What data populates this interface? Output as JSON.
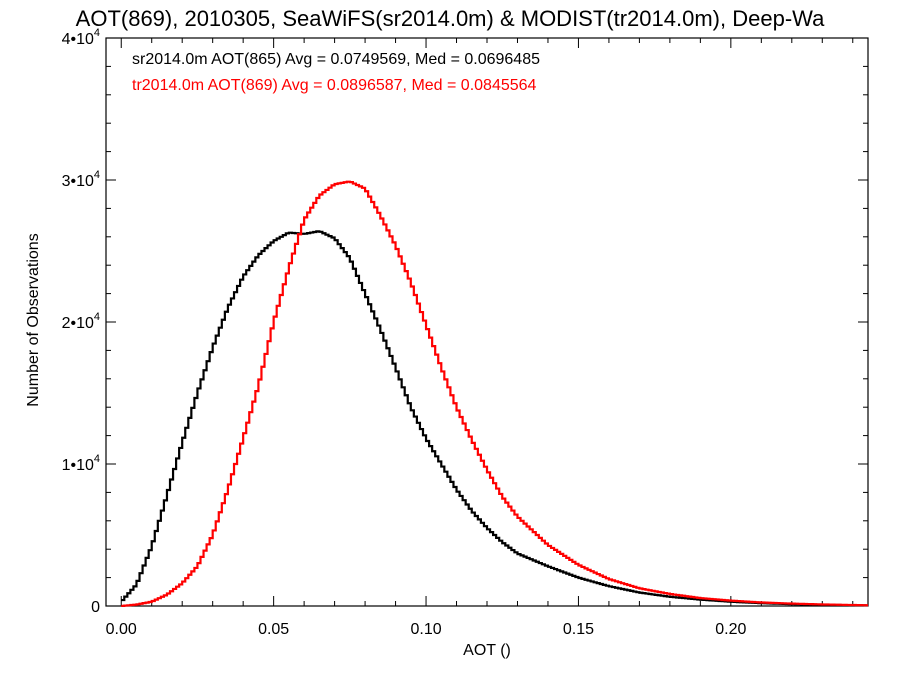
{
  "chart_data": {
    "type": "line",
    "title": "AOT(869), 2010305, SeaWiFS(sr2014.0m) & MODIST(tr2014.0m), Deep-Wa",
    "xlabel": "AOT ()",
    "ylabel": "Number of Observations",
    "xlim": [
      -0.005,
      0.245
    ],
    "ylim": [
      0,
      40000
    ],
    "x_ticks": [
      0.0,
      0.05,
      0.1,
      0.15,
      0.2
    ],
    "x_tick_labels": [
      "0.00",
      "0.05",
      "0.10",
      "0.15",
      "0.20"
    ],
    "y_ticks": [
      0,
      10000,
      20000,
      30000,
      40000
    ],
    "y_tick_labels": [
      {
        "mant": "0",
        "exp": ""
      },
      {
        "mant": "1•10",
        "exp": "4"
      },
      {
        "mant": "2•10",
        "exp": "4"
      },
      {
        "mant": "3•10",
        "exp": "4"
      },
      {
        "mant": "4•10",
        "exp": "4"
      }
    ],
    "legend": [
      {
        "text": "sr2014.0m AOT(865) Avg = 0.0749569, Med = 0.0696485",
        "color": "#000000"
      },
      {
        "text": "tr2014.0m AOT(869) Avg = 0.0896587, Med = 0.0845564",
        "color": "#ff0000"
      }
    ],
    "series": [
      {
        "color": "#000000",
        "x": [
          0.0,
          0.005,
          0.01,
          0.015,
          0.02,
          0.025,
          0.03,
          0.035,
          0.04,
          0.045,
          0.05,
          0.055,
          0.06,
          0.065,
          0.07,
          0.075,
          0.08,
          0.085,
          0.09,
          0.095,
          0.1,
          0.105,
          0.11,
          0.115,
          0.12,
          0.125,
          0.13,
          0.14,
          0.15,
          0.16,
          0.17,
          0.18,
          0.19,
          0.2,
          0.21,
          0.22,
          0.23,
          0.24,
          0.245
        ],
        "y": [
          300,
          1500,
          4200,
          7800,
          11500,
          15000,
          18200,
          21000,
          23200,
          24700,
          25700,
          26300,
          26200,
          26400,
          25900,
          24500,
          22000,
          19500,
          16800,
          14000,
          11800,
          10000,
          8200,
          6700,
          5500,
          4500,
          3700,
          2800,
          2000,
          1400,
          950,
          650,
          450,
          300,
          200,
          130,
          90,
          50,
          40
        ]
      },
      {
        "color": "#ff0000",
        "x": [
          0.0,
          0.005,
          0.01,
          0.015,
          0.02,
          0.025,
          0.03,
          0.035,
          0.04,
          0.045,
          0.05,
          0.055,
          0.06,
          0.065,
          0.07,
          0.075,
          0.08,
          0.085,
          0.09,
          0.095,
          0.1,
          0.105,
          0.11,
          0.115,
          0.12,
          0.125,
          0.13,
          0.14,
          0.15,
          0.16,
          0.17,
          0.18,
          0.19,
          0.2,
          0.21,
          0.22,
          0.23,
          0.24,
          0.245
        ],
        "y": [
          0,
          100,
          300,
          800,
          1600,
          2800,
          5000,
          8200,
          11800,
          15500,
          20000,
          23800,
          27200,
          28900,
          29700,
          29900,
          29400,
          27500,
          25400,
          22800,
          19800,
          16800,
          14000,
          11700,
          9600,
          7700,
          6300,
          4300,
          2900,
          1900,
          1250,
          850,
          560,
          380,
          250,
          170,
          110,
          70,
          50
        ]
      }
    ]
  }
}
